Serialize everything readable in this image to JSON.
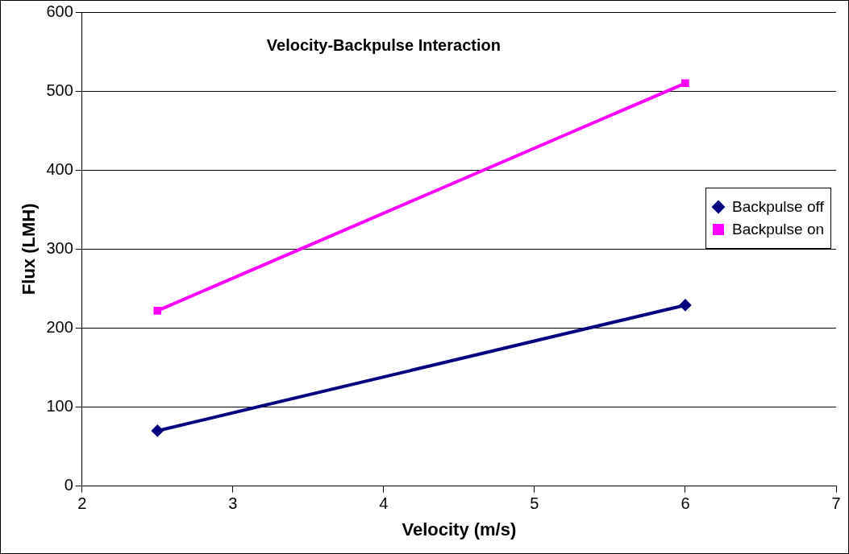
{
  "chart_data": {
    "type": "line",
    "title": "Velocity-Backpulse Interaction",
    "xlabel": "Velocity (m/s)",
    "ylabel": "Flux (LMH)",
    "xlim": [
      2,
      7
    ],
    "xticks": [
      2,
      3,
      4,
      5,
      6,
      7
    ],
    "ylim": [
      0,
      600
    ],
    "yticks": [
      0,
      100,
      200,
      300,
      400,
      500,
      600
    ],
    "x": [
      2.5,
      6
    ],
    "grid": "y",
    "legend": "right",
    "line_style": "solid",
    "series": [
      {
        "name": "Backpulse off",
        "color": "#000080",
        "marker": "diamond",
        "values": [
          70,
          229
        ]
      },
      {
        "name": "Backpulse on",
        "color": "#ff00ff",
        "marker": "square",
        "values": [
          222,
          510
        ]
      }
    ]
  }
}
